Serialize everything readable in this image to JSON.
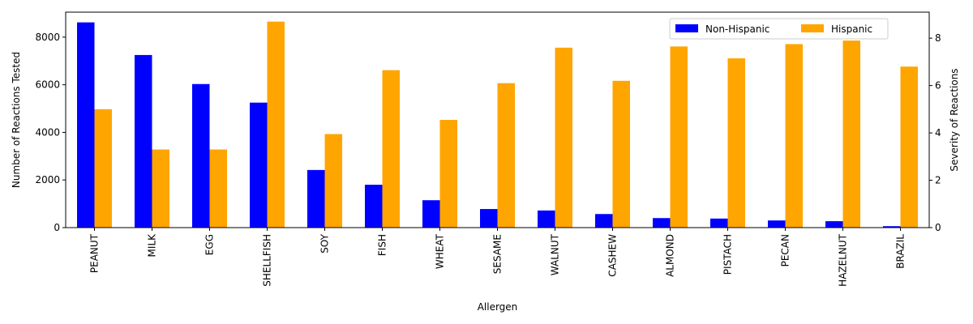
{
  "chart_data": {
    "type": "bar",
    "xlabel": "Allergen",
    "ylabel_left": "Number of Reactions Tested",
    "ylabel_right": "Severity of Reactions",
    "categories": [
      "PEANUT",
      "MILK",
      "EGG",
      "SHELLFISH",
      "SOY",
      "FISH",
      "WHEAT",
      "SESAME",
      "WALNUT",
      "CASHEW",
      "ALMOND",
      "PISTACH",
      "PECAN",
      "HAZELNUT",
      "BRAZIL"
    ],
    "series": [
      {
        "name": "Non-Hispanic",
        "axis": "left",
        "color": "#0000ff",
        "values": [
          8620,
          7250,
          6030,
          5250,
          2420,
          1800,
          1150,
          780,
          720,
          570,
          400,
          380,
          300,
          270,
          60
        ]
      },
      {
        "name": "Hispanic",
        "axis": "right",
        "color": "#ffa500",
        "values": [
          5.0,
          3.3,
          3.3,
          8.7,
          3.95,
          6.65,
          4.55,
          6.1,
          7.6,
          6.2,
          7.65,
          7.15,
          7.75,
          7.9,
          6.8
        ]
      }
    ],
    "ylim_left": [
      0,
      9050
    ],
    "ylim_right": [
      0,
      9.1
    ],
    "yticks_left": [
      0,
      2000,
      4000,
      6000,
      8000
    ],
    "yticks_right": [
      0,
      2,
      4,
      6,
      8
    ],
    "legend": "top-right",
    "grid": false
  }
}
